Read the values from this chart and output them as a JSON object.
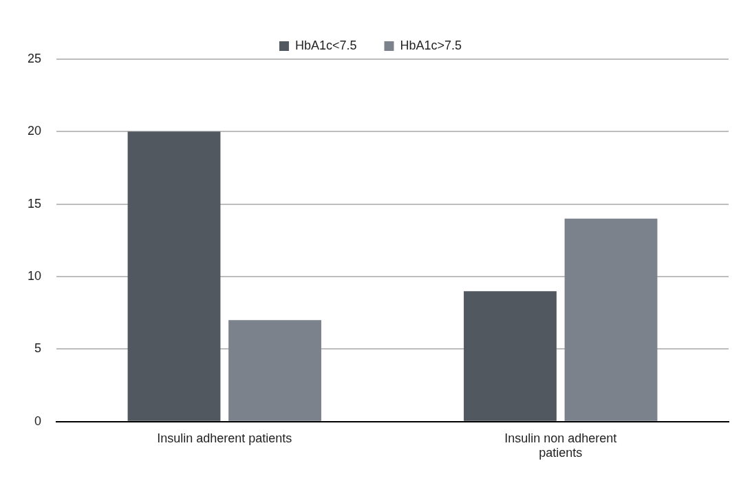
{
  "chart_data": {
    "type": "bar",
    "categories": [
      "Insulin adherent patients",
      "Insulin non adherent patients"
    ],
    "series": [
      {
        "name": "HbA1c<7.5",
        "color": "#525860",
        "values": [
          20,
          9
        ]
      },
      {
        "name": "HbA1c>7.5",
        "color": "#7b828b",
        "values": [
          7,
          14
        ]
      }
    ],
    "ylim": [
      0,
      25
    ],
    "yticks": [
      0,
      5,
      10,
      15,
      20,
      25
    ],
    "grid": "y",
    "legend": "top"
  }
}
